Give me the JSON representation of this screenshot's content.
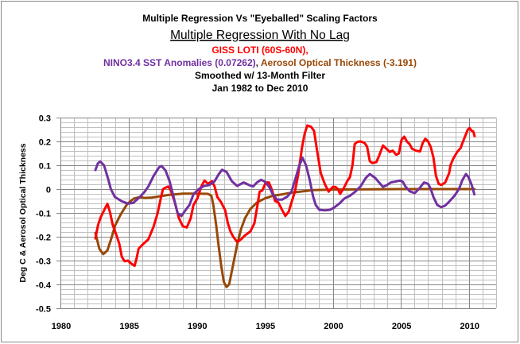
{
  "titles": {
    "line1": "Multiple Regression Vs \"Eyeballed\" Scaling Factors",
    "line2": "Multiple Regression With No Lag",
    "line3": "GISS LOTI (60S-60N),",
    "line4_a": "NINO3.4 SST Anomalies (0.07262)",
    "line4_sep": ", ",
    "line4_b": "Aerosol Optical Thickness (-3.191)",
    "line5": "Smoothed w/ 13-Month Filter",
    "line6": "Jan 1982 to Dec 2010"
  },
  "colors": {
    "giss": "#FF0000",
    "nino": "#7030A0",
    "aerosol": "#984807",
    "separator": "#222222"
  },
  "chart_data": {
    "type": "line",
    "title": "Multiple Regression Vs \"Eyeballed\" Scaling Factors",
    "subtitle": "Multiple Regression With No Lag",
    "xlabel": "",
    "ylabel": "Deg C & Aerosol Optical Thickness",
    "xlim": [
      1980,
      2012
    ],
    "ylim": [
      -0.5,
      0.3
    ],
    "xticks": [
      1980,
      1985,
      1990,
      1995,
      2000,
      2005,
      2010
    ],
    "xtick_labels": [
      "1980",
      "1985",
      "1990",
      "1995",
      "2000",
      "2005",
      "2010"
    ],
    "yticks": [
      0.3,
      0.2,
      0.1,
      0,
      -0.1,
      -0.2,
      -0.3,
      -0.4,
      -0.5
    ],
    "ytick_labels": [
      "0.3",
      "0.2",
      "0.1",
      "0",
      "-0.1",
      "-0.2",
      "-0.3",
      "-0.4",
      "-0.5"
    ],
    "grid": {
      "on": true,
      "x_minor_step": 1,
      "x_major_step": 5,
      "y_minor_step": 0.02,
      "y_major_step": 0.1
    },
    "legend": "none (series identified by colored title text)",
    "series": [
      {
        "key": "aerosol",
        "name": "Aerosol Optical Thickness (-3.191)",
        "color": "#984807",
        "points": [
          [
            1982.57,
            -0.184
          ],
          [
            1982.86,
            -0.251
          ],
          [
            1983.15,
            -0.273
          ],
          [
            1983.45,
            -0.257
          ],
          [
            1983.74,
            -0.207
          ],
          [
            1984.03,
            -0.151
          ],
          [
            1984.42,
            -0.107
          ],
          [
            1984.91,
            -0.062
          ],
          [
            1985.39,
            -0.04
          ],
          [
            1985.8,
            -0.034
          ],
          [
            1986.2,
            -0.037
          ],
          [
            1986.65,
            -0.036
          ],
          [
            1987.24,
            -0.031
          ],
          [
            1988.02,
            -0.024
          ],
          [
            1988.99,
            -0.019
          ],
          [
            1989.96,
            -0.019
          ],
          [
            1990.84,
            -0.02
          ],
          [
            1991.09,
            -0.028
          ],
          [
            1991.23,
            -0.067
          ],
          [
            1991.42,
            -0.144
          ],
          [
            1991.61,
            -0.233
          ],
          [
            1991.81,
            -0.322
          ],
          [
            1992.0,
            -0.389
          ],
          [
            1992.2,
            -0.411
          ],
          [
            1992.39,
            -0.4
          ],
          [
            1992.59,
            -0.344
          ],
          [
            1992.78,
            -0.289
          ],
          [
            1992.98,
            -0.233
          ],
          [
            1993.27,
            -0.167
          ],
          [
            1993.56,
            -0.122
          ],
          [
            1993.95,
            -0.083
          ],
          [
            1994.44,
            -0.056
          ],
          [
            1995.02,
            -0.039
          ],
          [
            1995.6,
            -0.028
          ],
          [
            1996.29,
            -0.022
          ],
          [
            1997.06,
            -0.014
          ],
          [
            1997.84,
            -0.009
          ],
          [
            1998.62,
            -0.004
          ],
          [
            2000.0,
            -0.002
          ],
          [
            2005.0,
            0.0
          ],
          [
            2010.4,
            0.0
          ]
        ]
      },
      {
        "key": "giss",
        "name": "GISS LOTI (60S-60N)",
        "color": "#FF0000",
        "points": [
          [
            1982.57,
            -0.207
          ],
          [
            1982.76,
            -0.151
          ],
          [
            1982.96,
            -0.118
          ],
          [
            1983.25,
            -0.084
          ],
          [
            1983.45,
            -0.062
          ],
          [
            1983.64,
            -0.096
          ],
          [
            1983.84,
            -0.151
          ],
          [
            1984.13,
            -0.196
          ],
          [
            1984.32,
            -0.229
          ],
          [
            1984.51,
            -0.284
          ],
          [
            1984.71,
            -0.303
          ],
          [
            1984.96,
            -0.3
          ],
          [
            1985.16,
            -0.311
          ],
          [
            1985.45,
            -0.322
          ],
          [
            1985.6,
            -0.289
          ],
          [
            1985.74,
            -0.25
          ],
          [
            1986.03,
            -0.233
          ],
          [
            1986.46,
            -0.211
          ],
          [
            1986.85,
            -0.156
          ],
          [
            1987.14,
            -0.1
          ],
          [
            1987.39,
            -0.033
          ],
          [
            1987.53,
            0.0
          ],
          [
            1987.72,
            0.006
          ],
          [
            1987.92,
            0.011
          ],
          [
            1988.11,
            -0.006
          ],
          [
            1988.4,
            -0.056
          ],
          [
            1988.7,
            -0.122
          ],
          [
            1988.99,
            -0.156
          ],
          [
            1989.28,
            -0.161
          ],
          [
            1989.57,
            -0.122
          ],
          [
            1989.77,
            -0.067
          ],
          [
            1990.06,
            -0.039
          ],
          [
            1990.35,
            0.011
          ],
          [
            1990.58,
            0.036
          ],
          [
            1990.84,
            0.022
          ],
          [
            1991.13,
            0.033
          ],
          [
            1991.32,
            0.011
          ],
          [
            1991.52,
            -0.033
          ],
          [
            1991.81,
            -0.056
          ],
          [
            1992.1,
            -0.089
          ],
          [
            1992.3,
            -0.144
          ],
          [
            1992.49,
            -0.178
          ],
          [
            1992.69,
            -0.2
          ],
          [
            1992.98,
            -0.222
          ],
          [
            1993.27,
            -0.211
          ],
          [
            1993.56,
            -0.194
          ],
          [
            1993.95,
            -0.178
          ],
          [
            1994.24,
            -0.144
          ],
          [
            1994.44,
            -0.078
          ],
          [
            1994.63,
            -0.011
          ],
          [
            1994.83,
            -0.006
          ],
          [
            1995.08,
            0.028
          ],
          [
            1995.31,
            0.028
          ],
          [
            1995.55,
            -0.006
          ],
          [
            1995.76,
            -0.05
          ],
          [
            1996.0,
            -0.056
          ],
          [
            1996.29,
            -0.089
          ],
          [
            1996.52,
            -0.113
          ],
          [
            1996.77,
            -0.094
          ],
          [
            1996.97,
            -0.056
          ],
          [
            1997.22,
            -0.011
          ],
          [
            1997.45,
            0.056
          ],
          [
            1997.75,
            0.178
          ],
          [
            1997.94,
            0.233
          ],
          [
            1998.13,
            0.267
          ],
          [
            1998.42,
            0.261
          ],
          [
            1998.63,
            0.244
          ],
          [
            1998.83,
            0.167
          ],
          [
            1999.12,
            0.067
          ],
          [
            1999.41,
            0.022
          ],
          [
            1999.7,
            -0.011
          ],
          [
            2000.0,
            0.009
          ],
          [
            2000.19,
            0.009
          ],
          [
            2000.38,
            0.0
          ],
          [
            2000.54,
            -0.02
          ],
          [
            2000.77,
            0.0
          ],
          [
            2001.06,
            0.033
          ],
          [
            2001.26,
            0.05
          ],
          [
            2001.45,
            0.1
          ],
          [
            2001.61,
            0.189
          ],
          [
            2001.8,
            0.198
          ],
          [
            2002.04,
            0.2
          ],
          [
            2002.33,
            0.194
          ],
          [
            2002.52,
            0.178
          ],
          [
            2002.72,
            0.117
          ],
          [
            2002.91,
            0.109
          ],
          [
            2003.2,
            0.113
          ],
          [
            2003.4,
            0.139
          ],
          [
            2003.69,
            0.183
          ],
          [
            2003.98,
            0.167
          ],
          [
            2004.18,
            0.156
          ],
          [
            2004.41,
            0.161
          ],
          [
            2004.66,
            0.144
          ],
          [
            2004.86,
            0.15
          ],
          [
            2005.05,
            0.206
          ],
          [
            2005.25,
            0.22
          ],
          [
            2005.44,
            0.2
          ],
          [
            2005.64,
            0.189
          ],
          [
            2005.83,
            0.169
          ],
          [
            2006.12,
            0.161
          ],
          [
            2006.41,
            0.158
          ],
          [
            2006.61,
            0.194
          ],
          [
            2006.8,
            0.211
          ],
          [
            2007.0,
            0.2
          ],
          [
            2007.19,
            0.178
          ],
          [
            2007.39,
            0.133
          ],
          [
            2007.58,
            0.056
          ],
          [
            2007.78,
            0.022
          ],
          [
            2007.97,
            0.017
          ],
          [
            2008.26,
            0.028
          ],
          [
            2008.55,
            0.067
          ],
          [
            2008.65,
            0.1
          ],
          [
            2008.85,
            0.128
          ],
          [
            2009.14,
            0.156
          ],
          [
            2009.39,
            0.172
          ],
          [
            2009.53,
            0.194
          ],
          [
            2009.72,
            0.222
          ],
          [
            2009.92,
            0.25
          ],
          [
            2010.05,
            0.256
          ],
          [
            2010.21,
            0.244
          ],
          [
            2010.32,
            0.242
          ],
          [
            2010.42,
            0.222
          ]
        ]
      },
      {
        "key": "nino",
        "name": "NINO3.4 SST Anomalies (0.07262)",
        "color": "#7030A0",
        "points": [
          [
            1982.57,
            0.08
          ],
          [
            1982.75,
            0.108
          ],
          [
            1982.92,
            0.116
          ],
          [
            1983.2,
            0.1
          ],
          [
            1983.5,
            0.044
          ],
          [
            1983.7,
            0.0
          ],
          [
            1984.0,
            -0.033
          ],
          [
            1984.47,
            -0.05
          ],
          [
            1984.96,
            -0.061
          ],
          [
            1985.35,
            -0.058
          ],
          [
            1985.84,
            -0.033
          ],
          [
            1986.2,
            -0.01
          ],
          [
            1986.46,
            0.011
          ],
          [
            1986.85,
            0.056
          ],
          [
            1987.24,
            0.091
          ],
          [
            1987.43,
            0.097
          ],
          [
            1987.72,
            0.078
          ],
          [
            1988.02,
            0.033
          ],
          [
            1988.31,
            -0.033
          ],
          [
            1988.6,
            -0.1
          ],
          [
            1988.89,
            -0.113
          ],
          [
            1989.18,
            -0.089
          ],
          [
            1989.47,
            -0.067
          ],
          [
            1989.77,
            -0.022
          ],
          [
            1990.16,
            0.0
          ],
          [
            1990.54,
            0.013
          ],
          [
            1990.93,
            0.017
          ],
          [
            1991.32,
            0.033
          ],
          [
            1991.61,
            0.061
          ],
          [
            1991.87,
            0.081
          ],
          [
            1992.2,
            0.072
          ],
          [
            1992.59,
            0.033
          ],
          [
            1992.98,
            0.013
          ],
          [
            1993.46,
            0.028
          ],
          [
            1993.85,
            0.017
          ],
          [
            1994.15,
            0.011
          ],
          [
            1994.44,
            0.028
          ],
          [
            1994.73,
            0.039
          ],
          [
            1995.02,
            0.031
          ],
          [
            1995.31,
            0.011
          ],
          [
            1995.6,
            -0.022
          ],
          [
            1995.9,
            -0.044
          ],
          [
            1996.29,
            -0.044
          ],
          [
            1996.67,
            -0.031
          ],
          [
            1996.97,
            -0.011
          ],
          [
            1997.26,
            0.044
          ],
          [
            1997.55,
            0.1
          ],
          [
            1997.78,
            0.131
          ],
          [
            1998.04,
            0.1
          ],
          [
            1998.3,
            0.04
          ],
          [
            1998.55,
            -0.03
          ],
          [
            1998.75,
            -0.067
          ],
          [
            1999.02,
            -0.087
          ],
          [
            1999.41,
            -0.089
          ],
          [
            1999.8,
            -0.087
          ],
          [
            2000.09,
            -0.078
          ],
          [
            2000.48,
            -0.061
          ],
          [
            2000.87,
            -0.039
          ],
          [
            2001.26,
            -0.028
          ],
          [
            2001.65,
            -0.011
          ],
          [
            2002.04,
            0.011
          ],
          [
            2002.43,
            0.047
          ],
          [
            2002.72,
            0.063
          ],
          [
            2003.11,
            0.047
          ],
          [
            2003.4,
            0.028
          ],
          [
            2003.69,
            0.009
          ],
          [
            2003.98,
            0.017
          ],
          [
            2004.27,
            0.028
          ],
          [
            2004.57,
            0.031
          ],
          [
            2004.95,
            0.036
          ],
          [
            2005.15,
            0.03
          ],
          [
            2005.34,
            0.011
          ],
          [
            2005.64,
            -0.009
          ],
          [
            2006.02,
            -0.017
          ],
          [
            2006.32,
            0.0
          ],
          [
            2006.71,
            0.028
          ],
          [
            2007.0,
            0.022
          ],
          [
            2007.19,
            0.002
          ],
          [
            2007.39,
            -0.033
          ],
          [
            2007.68,
            -0.067
          ],
          [
            2007.97,
            -0.076
          ],
          [
            2008.26,
            -0.069
          ],
          [
            2008.55,
            -0.053
          ],
          [
            2008.94,
            -0.028
          ],
          [
            2009.27,
            0.0
          ],
          [
            2009.53,
            0.039
          ],
          [
            2009.78,
            0.063
          ],
          [
            2009.97,
            0.05
          ],
          [
            2010.21,
            0.017
          ],
          [
            2010.4,
            -0.022
          ]
        ]
      }
    ]
  }
}
